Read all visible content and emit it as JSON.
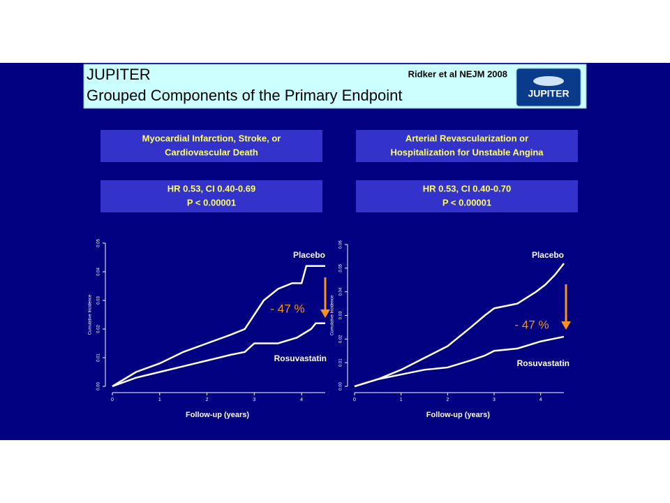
{
  "header": {
    "title": "JUPITER",
    "subtitle": "Grouped Components of the Primary Endpoint",
    "citation": "Ridker et al NEJM 2008",
    "logo": "JUPITER"
  },
  "chart_data": [
    {
      "type": "line",
      "heading": [
        "Myocardial Infarction, Stroke, or",
        "Cardiovascular Death"
      ],
      "stats": [
        "HR 0.53, CI 0.40-0.69",
        "P < 0.00001"
      ],
      "x_label": "Follow-up (years)",
      "y_label": "Cumulative Incidence",
      "annotation": "- 47 %",
      "xlim": [
        0,
        4.5
      ],
      "xticks": [
        0,
        1,
        2,
        3,
        4
      ],
      "ylim": [
        0,
        0.05
      ],
      "yticks": [
        {
          "value": 0,
          "label": "0.00"
        },
        {
          "value": 0.01,
          "label": "0.01"
        },
        {
          "value": 0.02,
          "label": "0.02"
        },
        {
          "value": 0.03,
          "label": "0.03"
        },
        {
          "value": 0.04,
          "label": "0.04"
        },
        {
          "value": 0.05,
          "label": "0.05"
        }
      ],
      "series": [
        {
          "name": "Placebo",
          "color": "#ffffff",
          "x": [
            0,
            0.5,
            1,
            1.5,
            2,
            2.5,
            2.8,
            3,
            3.2,
            3.5,
            3.8,
            4,
            4.1,
            4.5
          ],
          "values": [
            0,
            0.005,
            0.008,
            0.012,
            0.015,
            0.018,
            0.02,
            0.025,
            0.03,
            0.034,
            0.036,
            0.036,
            0.042,
            0.042
          ]
        },
        {
          "name": "Rosuvastatin",
          "color": "#ffffff",
          "x": [
            0,
            0.5,
            1,
            1.5,
            2,
            2.5,
            2.8,
            3,
            3.5,
            3.9,
            4.2,
            4.3,
            4.5
          ],
          "values": [
            0,
            0.003,
            0.005,
            0.007,
            0.009,
            0.011,
            0.012,
            0.015,
            0.015,
            0.017,
            0.02,
            0.022,
            0.022
          ]
        }
      ]
    },
    {
      "type": "line",
      "heading": [
        "Arterial Revascularization or",
        "Hospitalization for Unstable Angina"
      ],
      "stats": [
        "HR 0.53, CI 0.40-0.70",
        "P < 0.00001"
      ],
      "x_label": "Follow-up (years)",
      "y_label": "Cumulative Incidence",
      "annotation": "- 47 %",
      "xlim": [
        0,
        4.5
      ],
      "xticks": [
        0,
        1,
        2,
        3,
        4
      ],
      "ylim": [
        0,
        0.06
      ],
      "yticks": [
        {
          "value": 0,
          "label": "0.00"
        },
        {
          "value": 0.01,
          "label": "0.01"
        },
        {
          "value": 0.02,
          "label": "0.02"
        },
        {
          "value": 0.03,
          "label": "0.03"
        },
        {
          "value": 0.04,
          "label": "0.04"
        },
        {
          "value": 0.05,
          "label": "0.05"
        },
        {
          "value": 0.06,
          "label": "0.06"
        }
      ],
      "series": [
        {
          "name": "Placebo",
          "color": "#ffffff",
          "x": [
            0,
            0.5,
            1,
            1.5,
            2,
            2.5,
            2.8,
            3,
            3.5,
            3.9,
            4.1,
            4.3,
            4.5
          ],
          "values": [
            0,
            0.003,
            0.007,
            0.012,
            0.017,
            0.025,
            0.03,
            0.033,
            0.035,
            0.04,
            0.043,
            0.047,
            0.052
          ]
        },
        {
          "name": "Rosuvastatin",
          "color": "#ffffff",
          "x": [
            0,
            0.5,
            1,
            1.5,
            2,
            2.5,
            2.8,
            3,
            3.5,
            4,
            4.5
          ],
          "values": [
            0,
            0.003,
            0.005,
            0.007,
            0.008,
            0.011,
            0.013,
            0.015,
            0.016,
            0.019,
            0.021
          ]
        }
      ]
    }
  ]
}
